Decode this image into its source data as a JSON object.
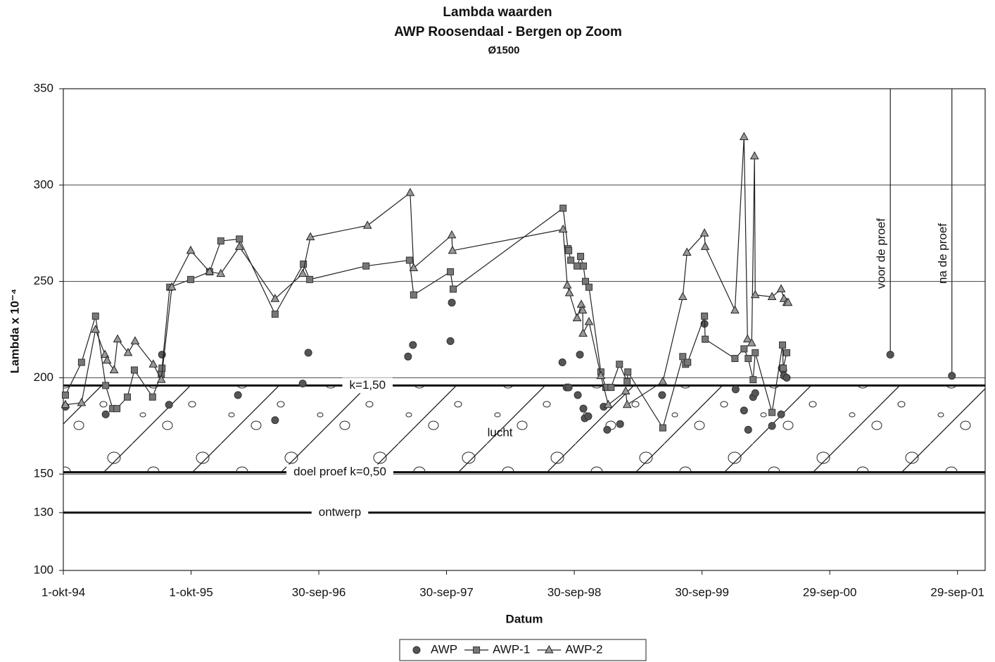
{
  "chart_data": {
    "type": "line",
    "title": "Lambda waarden",
    "subtitle": "AWP Roosendaal - Bergen op Zoom",
    "subtitle2": "Ø1500",
    "x_label": "Datum",
    "y_label": "Lambda x 10⁻⁴",
    "xlim": [
      "1994-10-01",
      "2001-12-17"
    ],
    "xticks": [
      {
        "value": "1994-10-01",
        "label": "1-okt-94"
      },
      {
        "value": "1995-10-01",
        "label": "1-okt-95"
      },
      {
        "value": "1996-09-30",
        "label": "30-sep-96"
      },
      {
        "value": "1997-09-30",
        "label": "30-sep-97"
      },
      {
        "value": "1998-09-30",
        "label": "30-sep-98"
      },
      {
        "value": "1999-09-30",
        "label": "30-sep-99"
      },
      {
        "value": "2000-09-29",
        "label": "29-sep-00"
      },
      {
        "value": "2001-09-29",
        "label": "29-sep-01"
      }
    ],
    "ylim": [
      100,
      350
    ],
    "yticks": [
      100,
      130,
      150,
      200,
      250,
      300,
      350
    ],
    "grid": true,
    "legend": "bottom",
    "annotations": [
      {
        "text": "k=1,50",
        "value": 196
      },
      {
        "text": "doel proef k=0,50",
        "value": 151
      },
      {
        "text": "ontwerp",
        "value": 130
      }
    ],
    "band_label": "lucht",
    "vlines": [
      {
        "text": "voor de proef",
        "x": "2001-03-21"
      },
      {
        "text": "na de proef",
        "x": "2001-09-13"
      }
    ],
    "series": [
      {
        "name": "AWP",
        "color": "#555555",
        "marker": "circle",
        "line": false,
        "x": [
          "1994-10-07",
          "1995-01-30",
          "1995-07-10",
          "1995-07-30",
          "1996-02-12",
          "1996-05-28",
          "1996-08-15",
          "1996-08-31",
          "1997-06-12",
          "1997-06-26",
          "1997-10-11",
          "1997-10-15",
          "1998-08-27",
          "1998-09-08",
          "1998-09-14",
          "1998-10-10",
          "1998-10-16",
          "1998-10-26",
          "1998-10-30",
          "1998-11-09",
          "1998-12-23",
          "1999-01-02",
          "1999-02-08",
          "1999-06-08",
          "1999-10-07",
          "2000-01-04",
          "2000-01-28",
          "2000-02-09",
          "2000-02-23",
          "2000-02-29",
          "2000-04-17",
          "2000-05-13",
          "2000-05-15",
          "2000-05-19",
          "2000-05-21",
          "2000-05-29",
          "2001-03-21",
          "2001-09-13"
        ],
        "values": [
          185,
          181,
          212,
          186,
          191,
          178,
          197,
          213,
          211,
          217,
          219,
          239,
          208,
          195,
          195,
          191,
          212,
          184,
          179,
          180,
          185,
          173,
          176,
          191,
          228,
          194,
          183,
          173,
          190,
          192,
          175,
          181,
          205,
          204,
          201,
          200,
          212,
          201
        ]
      },
      {
        "name": "AWP-1",
        "color": "#777777",
        "marker": "square",
        "line": true,
        "x": [
          "1994-10-07",
          "1994-11-22",
          "1995-01-01",
          "1995-01-30",
          "1995-02-19",
          "1995-03-03",
          "1995-04-02",
          "1995-04-22",
          "1995-06-13",
          "1995-07-08",
          "1995-07-10",
          "1995-08-01",
          "1995-09-30",
          "1995-11-23",
          "1995-12-25",
          "1996-02-16",
          "1996-05-28",
          "1996-08-17",
          "1996-09-04",
          "1997-02-12",
          "1997-06-16",
          "1997-06-28",
          "1997-10-11",
          "1997-10-19",
          "1998-08-29",
          "1998-09-12",
          "1998-09-14",
          "1998-09-20",
          "1998-10-08",
          "1998-10-18",
          "1998-10-26",
          "1998-11-01",
          "1998-11-11",
          "1998-12-15",
          "1998-12-29",
          "1999-01-13",
          "1999-02-06",
          "1999-02-28",
          "1999-03-02",
          "1999-06-10",
          "1999-08-06",
          "1999-08-14",
          "1999-08-20",
          "1999-10-07",
          "1999-10-09",
          "2000-01-02",
          "2000-01-28",
          "2000-02-09",
          "2000-02-23",
          "2000-02-29",
          "2000-04-17",
          "2000-05-17",
          "2000-05-19",
          "2000-05-29"
        ],
        "values": [
          191,
          208,
          232,
          196,
          184,
          184,
          190,
          204,
          190,
          202,
          205,
          247,
          251,
          255,
          271,
          272,
          233,
          259,
          251,
          258,
          261,
          243,
          255,
          246,
          288,
          267,
          266,
          261,
          258,
          263,
          258,
          250,
          247,
          203,
          195,
          195,
          207,
          198,
          203,
          174,
          211,
          207,
          208,
          232,
          220,
          210,
          215,
          210,
          199,
          213,
          182,
          217,
          205,
          213
        ]
      },
      {
        "name": "AWP-2",
        "color": "#999999",
        "marker": "triangle",
        "line": true,
        "x": [
          "1994-10-07",
          "1994-11-22",
          "1995-01-01",
          "1995-01-28",
          "1995-02-03",
          "1995-02-23",
          "1995-03-05",
          "1995-04-04",
          "1995-04-24",
          "1995-06-15",
          "1995-07-08",
          "1995-08-07",
          "1995-09-30",
          "1995-11-23",
          "1995-12-25",
          "1996-02-16",
          "1996-05-28",
          "1996-08-15",
          "1996-09-06",
          "1997-02-16",
          "1997-06-18",
          "1997-06-28",
          "1997-10-15",
          "1997-10-17",
          "1998-08-29",
          "1998-09-10",
          "1998-09-16",
          "1998-10-08",
          "1998-10-20",
          "1998-10-24",
          "1998-10-25",
          "1998-11-11",
          "1998-12-15",
          "1999-01-05",
          "1999-02-24",
          "1999-02-28",
          "1999-06-10",
          "1999-08-06",
          "1999-08-18",
          "1999-10-07",
          "1999-10-09",
          "2000-01-02",
          "2000-01-28",
          "2000-02-07",
          "2000-02-19",
          "2000-02-27",
          "2000-02-29",
          "2000-04-17",
          "2000-05-13",
          "2000-05-21",
          "2000-05-29",
          "2000-06-02"
        ],
        "values": [
          186,
          187,
          225,
          212,
          209,
          204,
          220,
          213,
          219,
          207,
          199,
          247,
          266,
          255,
          254,
          268,
          241,
          254,
          273,
          279,
          296,
          257,
          274,
          266,
          277,
          248,
          244,
          231,
          238,
          235,
          223,
          229,
          201,
          186,
          193,
          186,
          198,
          242,
          265,
          275,
          268,
          235,
          325,
          220,
          218,
          315,
          243,
          242,
          246,
          241,
          239,
          239
        ]
      }
    ]
  }
}
